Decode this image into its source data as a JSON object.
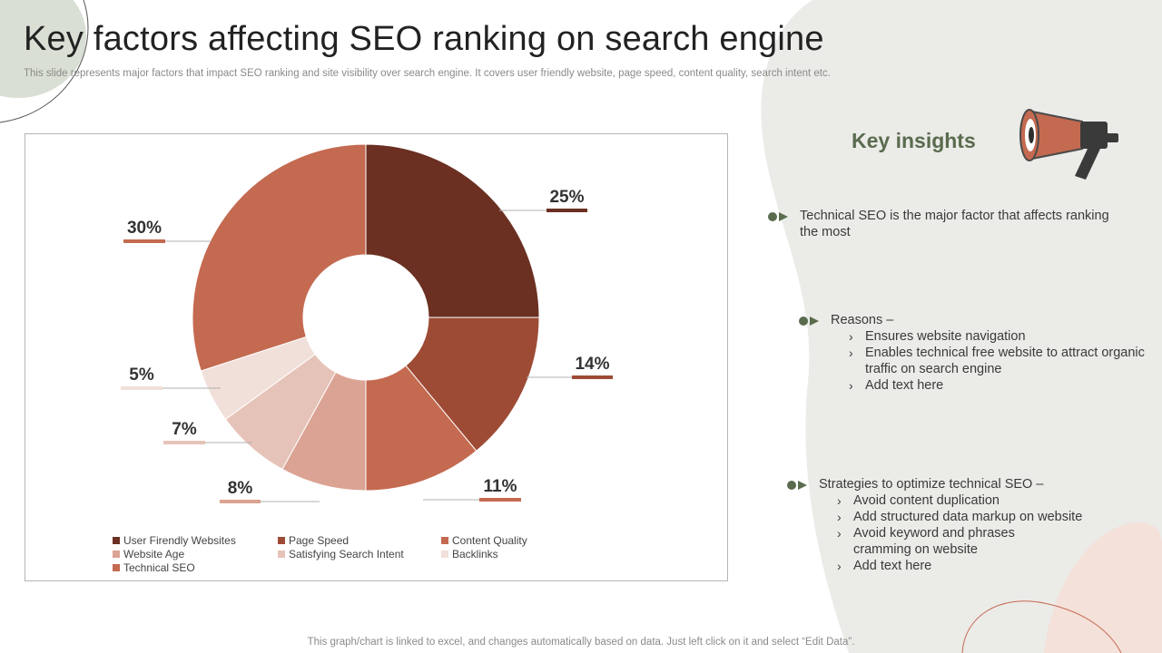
{
  "slide": {
    "title": "Key factors affecting SEO ranking on search engine",
    "subtitle": "This slide represents major factors that impact SEO ranking and site visibility over search engine. It covers user friendly website, page speed, content quality, search intent etc.",
    "footer": "This graph/chart is linked to excel,  and changes automatically based on data. Just left click on it and select “Edit Data”."
  },
  "insights": {
    "title": "Key insights",
    "icon": "megaphone-icon",
    "point1": "Technical SEO is the major factor that affects ranking\nthe most",
    "reasons_label": "Reasons –",
    "reasons": [
      "Ensures website navigation",
      "Enables technical free website to attract organic\ntraffic on search engine",
      "Add text here"
    ],
    "strategies_label": "Strategies to optimize technical SEO –",
    "strategies": [
      "Avoid content duplication",
      "Add structured data markup on website",
      "Avoid keyword and phrases\ncramming on website",
      "Add text here"
    ]
  },
  "colors": {
    "accent_green": "#5a6b4e",
    "blob_gray": "#ebebe8"
  },
  "chart_data": {
    "type": "pie",
    "variant": "doughnut",
    "categories": [
      "User Firendly Websites",
      "Page Speed",
      "Content Quality",
      "Website Age",
      "Satisfying Search Intent",
      "Backlinks",
      "Technical SEO"
    ],
    "values": [
      25,
      14,
      11,
      8,
      7,
      5,
      30
    ],
    "labels": [
      "25%",
      "14%",
      "11%",
      "8%",
      "7%",
      "5%",
      "30%"
    ],
    "colors": [
      "#6b3022",
      "#9e4b36",
      "#c46a50",
      "#dba393",
      "#e6c3b8",
      "#f1dfd9",
      "#c46a50"
    ],
    "legend_position": "bottom"
  }
}
